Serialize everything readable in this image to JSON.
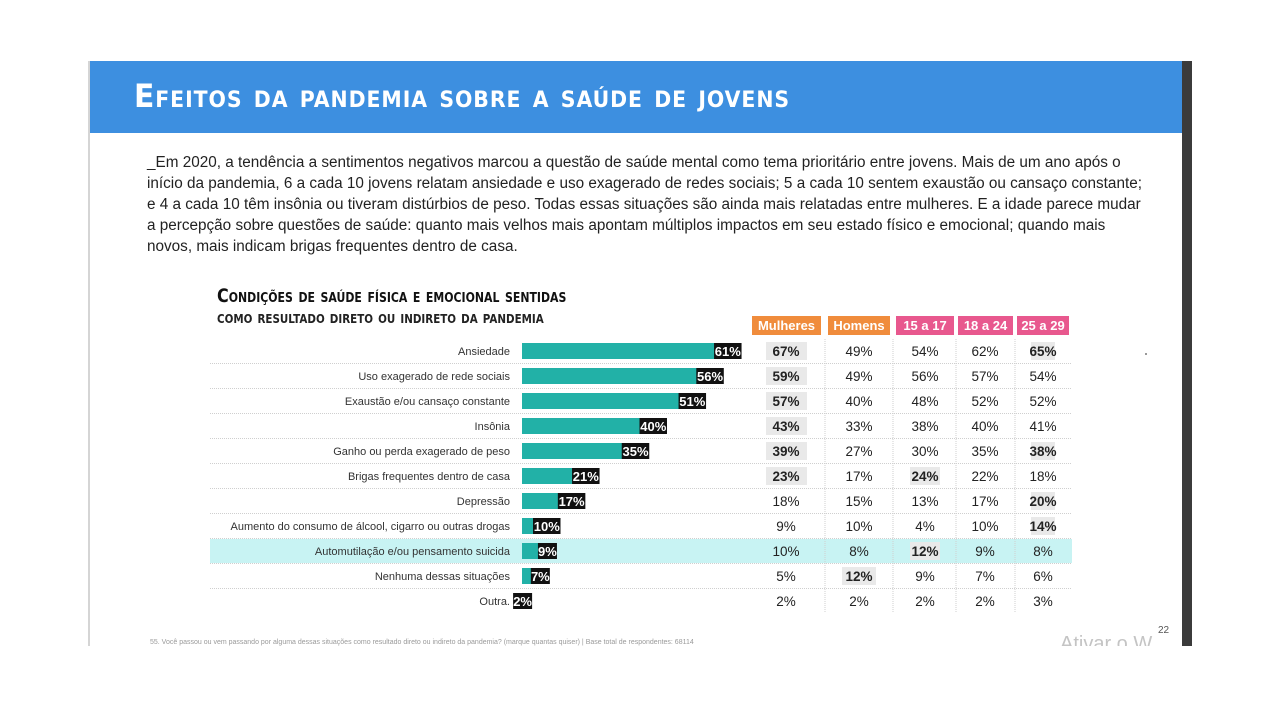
{
  "slide": {
    "title": "Efeitos da pandemia sobre a saúde de jovens",
    "intro": "_Em 2020, a tendência a sentimentos negativos marcou a questão de saúde mental como tema prioritário entre jovens. Mais de um ano após o início da pandemia, 6 a cada 10 jovens relatam ansiedade e uso exagerado de redes sociais; 5 a cada 10 sentem exaustão ou cansaço constante; e 4 a cada 10 têm insônia ou tiveram distúrbios de peso. Todas essas situações são ainda mais relatadas entre mulheres. E a idade parece mudar a percepção sobre questões de saúde: quanto mais velhos mais apontam múltiplos impactos em seu estado físico e emocional; quando mais novos, mais indicam brigas frequentes dentro de casa.",
    "footer": "55. Você passou ou vem passando por alguma dessas situações como resultado direto ou indireto da pandemia? (marque quantas quiser) | Base total de respondentes: 68114",
    "page_number": "22",
    "watermark": "Ativar o W"
  },
  "chart_data": {
    "type": "bar",
    "title": "Condições de saúde física e emocional sentidas",
    "subtitle": "como resultado direto ou indireto da pandemia",
    "categories": [
      "Ansiedade",
      "Uso exagerado de rede sociais",
      "Exaustão e/ou cansaço constante",
      "Insônia",
      "Ganho ou perda exagerado de peso",
      "Brigas frequentes dentro de casa",
      "Depressão",
      "Aumento do consumo de álcool, cigarro ou outras drogas",
      "Automutilação e/ou pensamento suicida",
      "Nenhuma dessas situações",
      "Outra."
    ],
    "values": [
      61,
      56,
      51,
      40,
      35,
      21,
      17,
      10,
      9,
      7,
      2
    ],
    "value_labels": [
      "61%",
      "56%",
      "51%",
      "40%",
      "35%",
      "21%",
      "17%",
      "10%",
      "9%",
      "7%",
      "2%"
    ],
    "bar_color": "#22b1a7",
    "highlight_row": 8,
    "highlight_color": "#c8f3f3",
    "table": {
      "columns": [
        {
          "label": "Mulheres",
          "color": "#f08c3c"
        },
        {
          "label": "Homens",
          "color": "#f08c3c"
        },
        {
          "label": "15 a 17",
          "color": "#e8588e"
        },
        {
          "label": "18 a 24",
          "color": "#e8588e"
        },
        {
          "label": "25 a 29",
          "color": "#e8588e"
        }
      ],
      "rows": [
        [
          "67%",
          "49%",
          "54%",
          "62%",
          "65%"
        ],
        [
          "59%",
          "49%",
          "56%",
          "57%",
          "54%"
        ],
        [
          "57%",
          "40%",
          "48%",
          "52%",
          "52%"
        ],
        [
          "43%",
          "33%",
          "38%",
          "40%",
          "41%"
        ],
        [
          "39%",
          "27%",
          "30%",
          "35%",
          "38%"
        ],
        [
          "23%",
          "17%",
          "24%",
          "22%",
          "18%"
        ],
        [
          "18%",
          "15%",
          "13%",
          "17%",
          "20%"
        ],
        [
          "9%",
          "10%",
          "4%",
          "10%",
          "14%"
        ],
        [
          "10%",
          "8%",
          "12%",
          "9%",
          "8%"
        ],
        [
          "5%",
          "12%",
          "9%",
          "7%",
          "6%"
        ],
        [
          "2%",
          "2%",
          "2%",
          "2%",
          "3%"
        ]
      ],
      "highlighted_cells": [
        [
          0,
          0
        ],
        [
          0,
          4
        ],
        [
          1,
          0
        ],
        [
          2,
          0
        ],
        [
          3,
          0
        ],
        [
          4,
          0
        ],
        [
          4,
          4
        ],
        [
          5,
          0
        ],
        [
          5,
          2
        ],
        [
          6,
          4
        ],
        [
          7,
          4
        ],
        [
          8,
          2
        ],
        [
          9,
          1
        ]
      ]
    }
  }
}
